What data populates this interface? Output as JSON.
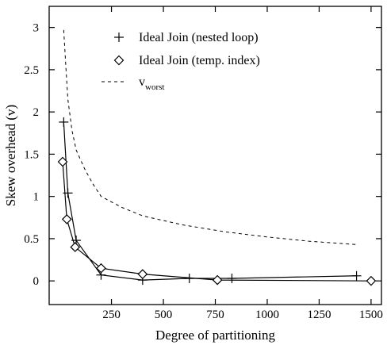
{
  "chart_data": {
    "type": "line",
    "xlabel": "Degree of partitioning",
    "ylabel": "Skew overhead (v)",
    "xlim": [
      -50,
      1550
    ],
    "ylim": [
      -0.28,
      3.25
    ],
    "x_ticks": [
      250,
      500,
      750,
      1000,
      1250,
      1500
    ],
    "x_tick_labels": [
      "250",
      "500",
      "750",
      "1000",
      "1250",
      "1500"
    ],
    "y_ticks": [
      0,
      0.5,
      1,
      1.5,
      2,
      2.5,
      3
    ],
    "y_tick_labels": [
      "0",
      "0.5",
      "1",
      "1.5",
      "2",
      "2.5",
      "3"
    ],
    "grid": false,
    "legend_position": "top-right",
    "series": [
      {
        "name": "Ideal Join (nested loop)",
        "marker": "plus",
        "style": "solid",
        "points": [
          {
            "x": 20,
            "y": 1.88
          },
          {
            "x": 40,
            "y": 1.04
          },
          {
            "x": 80,
            "y": 0.48
          },
          {
            "x": 200,
            "y": 0.07
          },
          {
            "x": 400,
            "y": 0.01
          },
          {
            "x": 625,
            "y": 0.03
          },
          {
            "x": 830,
            "y": 0.03
          },
          {
            "x": 1430,
            "y": 0.06
          }
        ]
      },
      {
        "name": "Ideal Join (temp. index)",
        "marker": "diamond",
        "style": "solid",
        "points": [
          {
            "x": 15,
            "y": 1.41
          },
          {
            "x": 35,
            "y": 0.73
          },
          {
            "x": 75,
            "y": 0.4
          },
          {
            "x": 200,
            "y": 0.15
          },
          {
            "x": 400,
            "y": 0.08
          },
          {
            "x": 760,
            "y": 0.01
          },
          {
            "x": 1500,
            "y": 0.0
          }
        ]
      },
      {
        "name": "v",
        "name_subscript": "worst",
        "marker": "none",
        "style": "dashed",
        "points": [
          {
            "x": 20,
            "y": 2.97
          },
          {
            "x": 30,
            "y": 2.55
          },
          {
            "x": 40,
            "y": 2.15
          },
          {
            "x": 60,
            "y": 1.78
          },
          {
            "x": 80,
            "y": 1.55
          },
          {
            "x": 120,
            "y": 1.33
          },
          {
            "x": 160,
            "y": 1.15
          },
          {
            "x": 200,
            "y": 1.0
          },
          {
            "x": 300,
            "y": 0.87
          },
          {
            "x": 400,
            "y": 0.77
          },
          {
            "x": 600,
            "y": 0.66
          },
          {
            "x": 800,
            "y": 0.58
          },
          {
            "x": 1000,
            "y": 0.52
          },
          {
            "x": 1200,
            "y": 0.47
          },
          {
            "x": 1430,
            "y": 0.43
          }
        ]
      }
    ]
  }
}
